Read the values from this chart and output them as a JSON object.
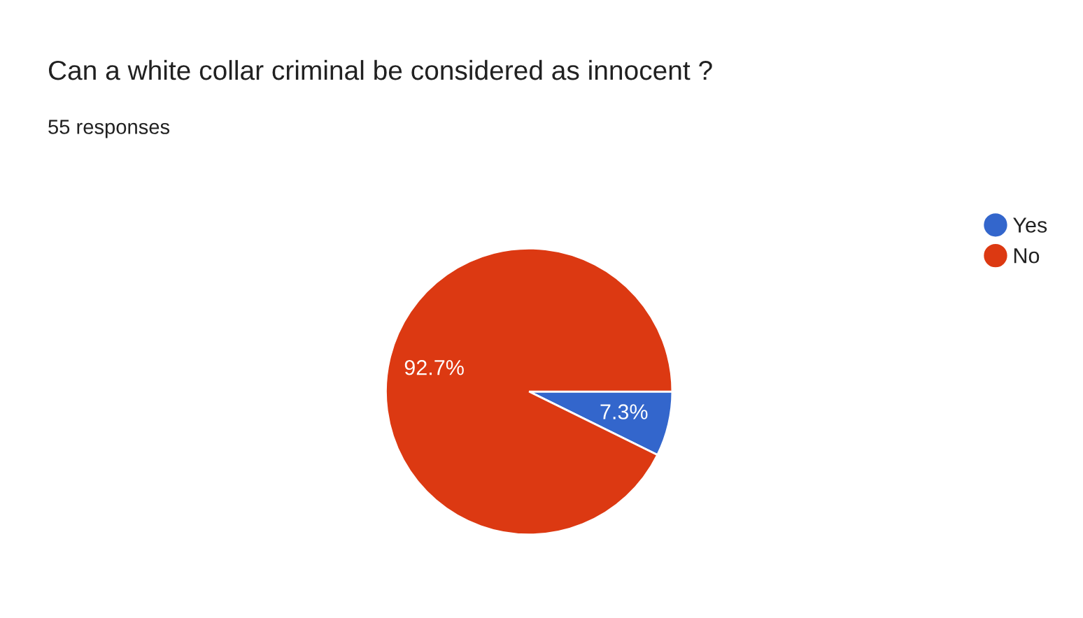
{
  "chart_data": {
    "type": "pie",
    "title": "Can a white collar criminal be considered as innocent ?",
    "subtitle": "55 responses",
    "categories": [
      "Yes",
      "No"
    ],
    "values": [
      7.3,
      92.7
    ],
    "colors": [
      "#3366cc",
      "#dc3912"
    ],
    "value_labels": [
      "7.3%",
      "92.7%"
    ],
    "legend": "top right"
  }
}
